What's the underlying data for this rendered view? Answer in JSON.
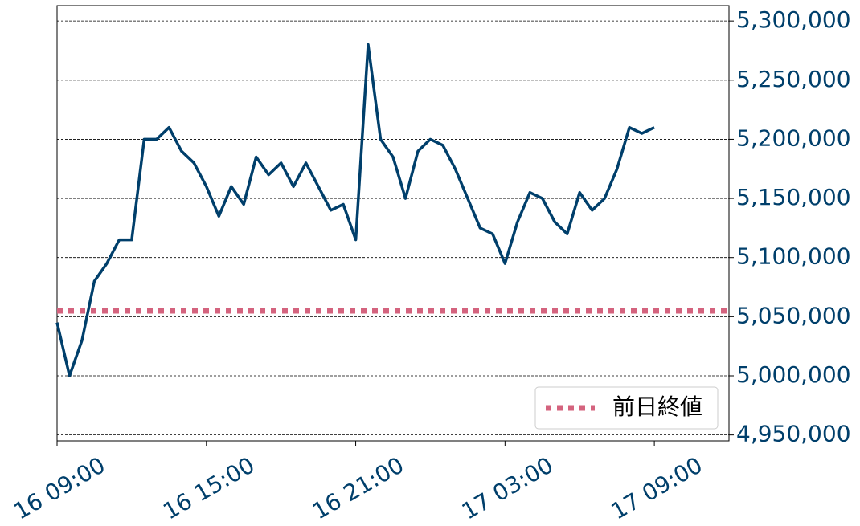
{
  "chart_data": {
    "type": "line",
    "x": [
      "16 09:00",
      "16 09:30",
      "16 10:00",
      "16 10:30",
      "16 11:00",
      "16 11:30",
      "16 12:00",
      "16 12:30",
      "16 13:00",
      "16 13:30",
      "16 14:00",
      "16 14:30",
      "16 15:00",
      "16 15:30",
      "16 16:00",
      "16 16:30",
      "16 17:00",
      "16 17:30",
      "16 18:00",
      "16 18:30",
      "16 19:00",
      "16 19:30",
      "16 20:00",
      "16 20:30",
      "16 21:00",
      "16 21:30",
      "16 22:00",
      "16 22:30",
      "16 23:00",
      "16 23:30",
      "17 00:00",
      "17 00:30",
      "17 01:00",
      "17 01:30",
      "17 02:00",
      "17 02:30",
      "17 03:00",
      "17 03:30",
      "17 04:00",
      "17 04:30",
      "17 05:00",
      "17 05:30",
      "17 06:00",
      "17 06:30",
      "17 07:00",
      "17 07:30",
      "17 08:00",
      "17 08:30",
      "17 09:00"
    ],
    "series": [
      {
        "color": "#003f6b",
        "values": [
          5045000,
          5000000,
          5030000,
          5080000,
          5095000,
          5115000,
          5115000,
          5200000,
          5200000,
          5210000,
          5190000,
          5180000,
          5160000,
          5135000,
          5160000,
          5145000,
          5185000,
          5170000,
          5180000,
          5160000,
          5180000,
          5160000,
          5140000,
          5145000,
          5115000,
          5280000,
          5200000,
          5185000,
          5150000,
          5190000,
          5200000,
          5195000,
          5175000,
          5150000,
          5125000,
          5120000,
          5095000,
          5130000,
          5155000,
          5150000,
          5130000,
          5120000,
          5155000,
          5140000,
          5150000,
          5175000,
          5210000,
          5205000,
          5210000
        ]
      }
    ],
    "reference_line": {
      "name": "前日終値",
      "value": 5055000,
      "color": "#d4637e"
    },
    "xlim": [
      "16 09:00",
      "17 12:00"
    ],
    "xticks": [
      "16 09:00",
      "16 15:00",
      "16 21:00",
      "17 03:00",
      "17 09:00"
    ],
    "ylim": [
      4945000,
      5313000
    ],
    "yticks": [
      {
        "value": 4950000,
        "label": "4,950,000"
      },
      {
        "value": 5000000,
        "label": "5,000,000"
      },
      {
        "value": 5050000,
        "label": "5,050,000"
      },
      {
        "value": 5100000,
        "label": "5,100,000"
      },
      {
        "value": 5150000,
        "label": "5,150,000"
      },
      {
        "value": 5200000,
        "label": "5,200,000"
      },
      {
        "value": 5250000,
        "label": "5,250,000"
      },
      {
        "value": 5300000,
        "label": "5,300,000"
      }
    ],
    "grid": true,
    "legend": "lower right"
  }
}
